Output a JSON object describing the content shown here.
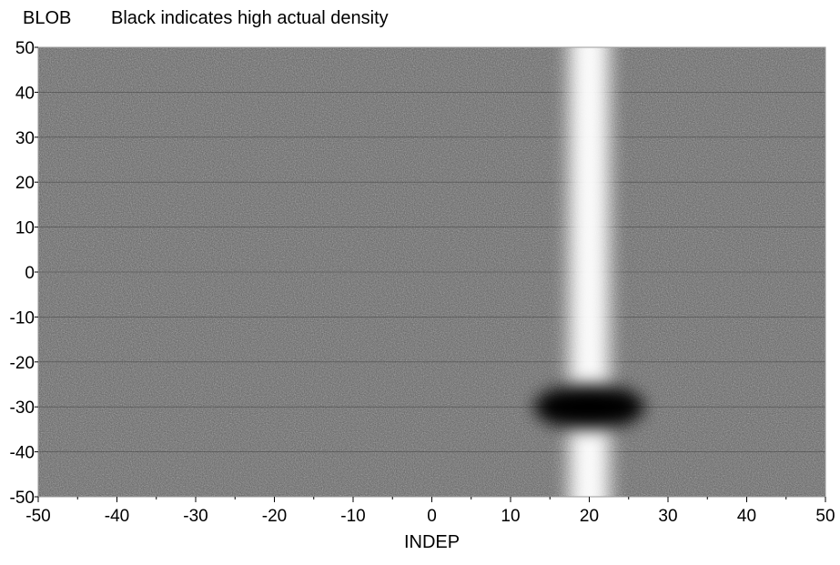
{
  "chart_data": {
    "type": "heatmap",
    "label": "BLOB",
    "title": "Black indicates high actual density",
    "xlabel": "INDEP",
    "ylabel": "",
    "xlim": [
      -50,
      50
    ],
    "ylim": [
      -50,
      50
    ],
    "x_ticks": [
      -50,
      -40,
      -30,
      -20,
      -10,
      0,
      10,
      20,
      30,
      40,
      50
    ],
    "y_ticks": [
      50,
      40,
      30,
      20,
      10,
      0,
      -10,
      -20,
      -30,
      -40,
      -50
    ],
    "x_tick_labels": [
      "-50",
      "-40",
      "-30",
      "-20",
      "-10",
      "0",
      "10",
      "20",
      "30",
      "40",
      "50"
    ],
    "y_tick_labels": [
      "50",
      "40",
      "30",
      "20",
      "10",
      "0",
      "-10",
      "-20",
      "-30",
      "-40",
      "-50"
    ],
    "grid": true,
    "colorscale": [
      "#ffffff",
      "#000000"
    ],
    "features": [
      {
        "kind": "low-density-band",
        "x_center": 20,
        "x_width": 5,
        "y_range": [
          -50,
          50
        ]
      },
      {
        "kind": "high-density-blob",
        "x_center": 20,
        "y_center": -30,
        "x_radius": 7,
        "y_radius": 5
      }
    ]
  }
}
